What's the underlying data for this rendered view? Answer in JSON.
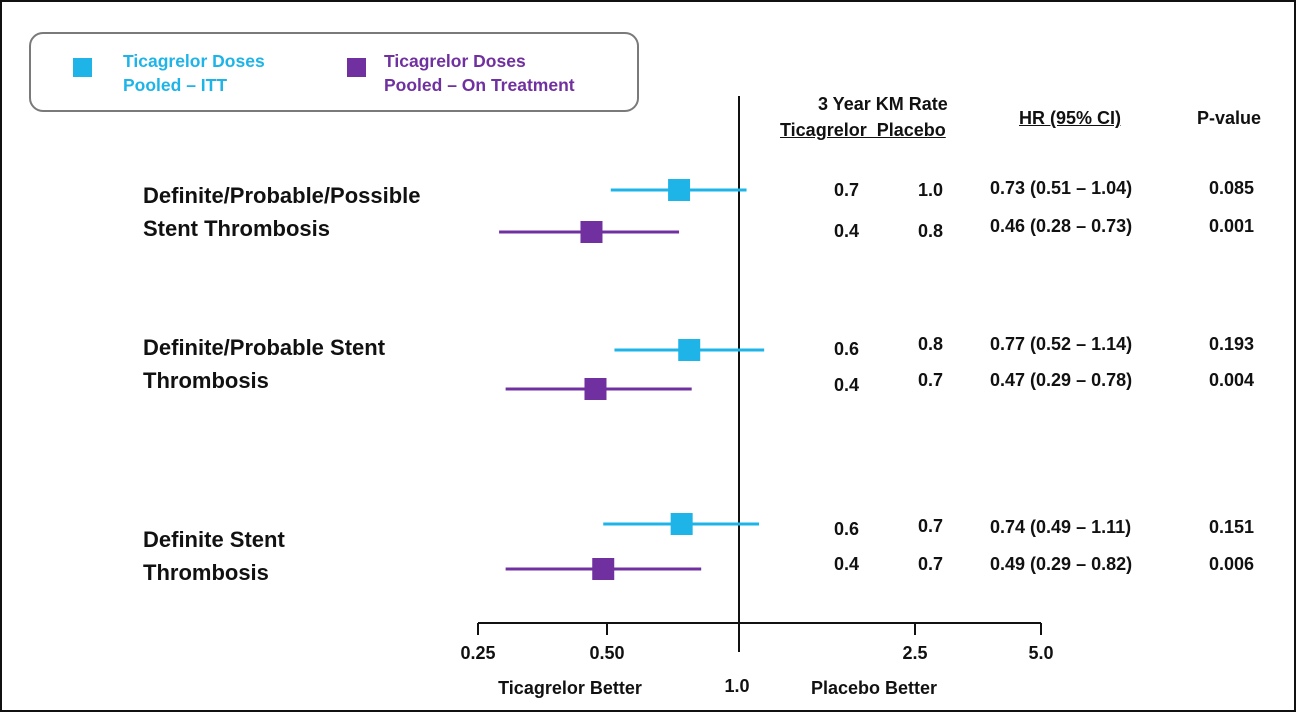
{
  "colors": {
    "itt": "#1EB4E8",
    "on_treatment": "#7030A0",
    "axis": "#111111"
  },
  "legend": {
    "items": [
      {
        "label": "Ticagrelor Doses\nPooled – ITT",
        "color": "#1EB4E8"
      },
      {
        "label": "Ticagrelor Doses\nPooled – On Treatment",
        "color": "#7030A0"
      }
    ]
  },
  "headers": {
    "km_title": "3 Year KM Rate",
    "km_subtitle": "Ticagrelor  Placebo",
    "hr": "HR (95% CI)",
    "pvalue": "P-value"
  },
  "axis": {
    "ticks": [
      "0.25",
      "0.50",
      "2.5",
      "5.0"
    ],
    "reference_label": "1.0",
    "left_caption": "Ticagrelor Better",
    "right_caption": "Placebo Better"
  },
  "chart_data": {
    "type": "forest",
    "scale": "log",
    "reference_line": 1.0,
    "x_ticks": [
      0.25,
      0.5,
      2.5,
      5.0
    ],
    "series": [
      {
        "name": "Ticagrelor Doses Pooled – ITT",
        "color": "#1EB4E8"
      },
      {
        "name": "Ticagrelor Doses Pooled – On Treatment",
        "color": "#7030A0"
      }
    ],
    "groups": [
      {
        "label": "Definite/Probable/Possible\nStent Thrombosis",
        "rows": [
          {
            "series": 0,
            "hr": 0.73,
            "lo": 0.51,
            "hi": 1.04,
            "km_ticagrelor": "0.7",
            "km_placebo": "1.0",
            "hr_text": "0.73 (0.51 – 1.04)",
            "p": "0.085"
          },
          {
            "series": 1,
            "hr": 0.46,
            "lo": 0.28,
            "hi": 0.73,
            "km_ticagrelor": "0.4",
            "km_placebo": "0.8",
            "hr_text": "0.46 (0.28 – 0.73)",
            "p": "0.001"
          }
        ]
      },
      {
        "label": "Definite/Probable Stent\nThrombosis",
        "rows": [
          {
            "series": 0,
            "hr": 0.77,
            "lo": 0.52,
            "hi": 1.14,
            "km_ticagrelor": "0.6",
            "km_placebo": "0.8",
            "hr_text": "0.77 (0.52 – 1.14)",
            "p": "0.193"
          },
          {
            "series": 1,
            "hr": 0.47,
            "lo": 0.29,
            "hi": 0.78,
            "km_ticagrelor": "0.4",
            "km_placebo": "0.7",
            "hr_text": "0.47 (0.29 – 0.78)",
            "p": "0.004"
          }
        ]
      },
      {
        "label": "Definite Stent\nThrombosis",
        "rows": [
          {
            "series": 0,
            "hr": 0.74,
            "lo": 0.49,
            "hi": 1.11,
            "km_ticagrelor": "0.6",
            "km_placebo": "0.7",
            "hr_text": "0.74 (0.49 – 1.11)",
            "p": "0.151"
          },
          {
            "series": 1,
            "hr": 0.49,
            "lo": 0.29,
            "hi": 0.82,
            "km_ticagrelor": "0.4",
            "km_placebo": "0.7",
            "hr_text": "0.49 (0.29 – 0.82)",
            "p": "0.006"
          }
        ]
      }
    ]
  }
}
